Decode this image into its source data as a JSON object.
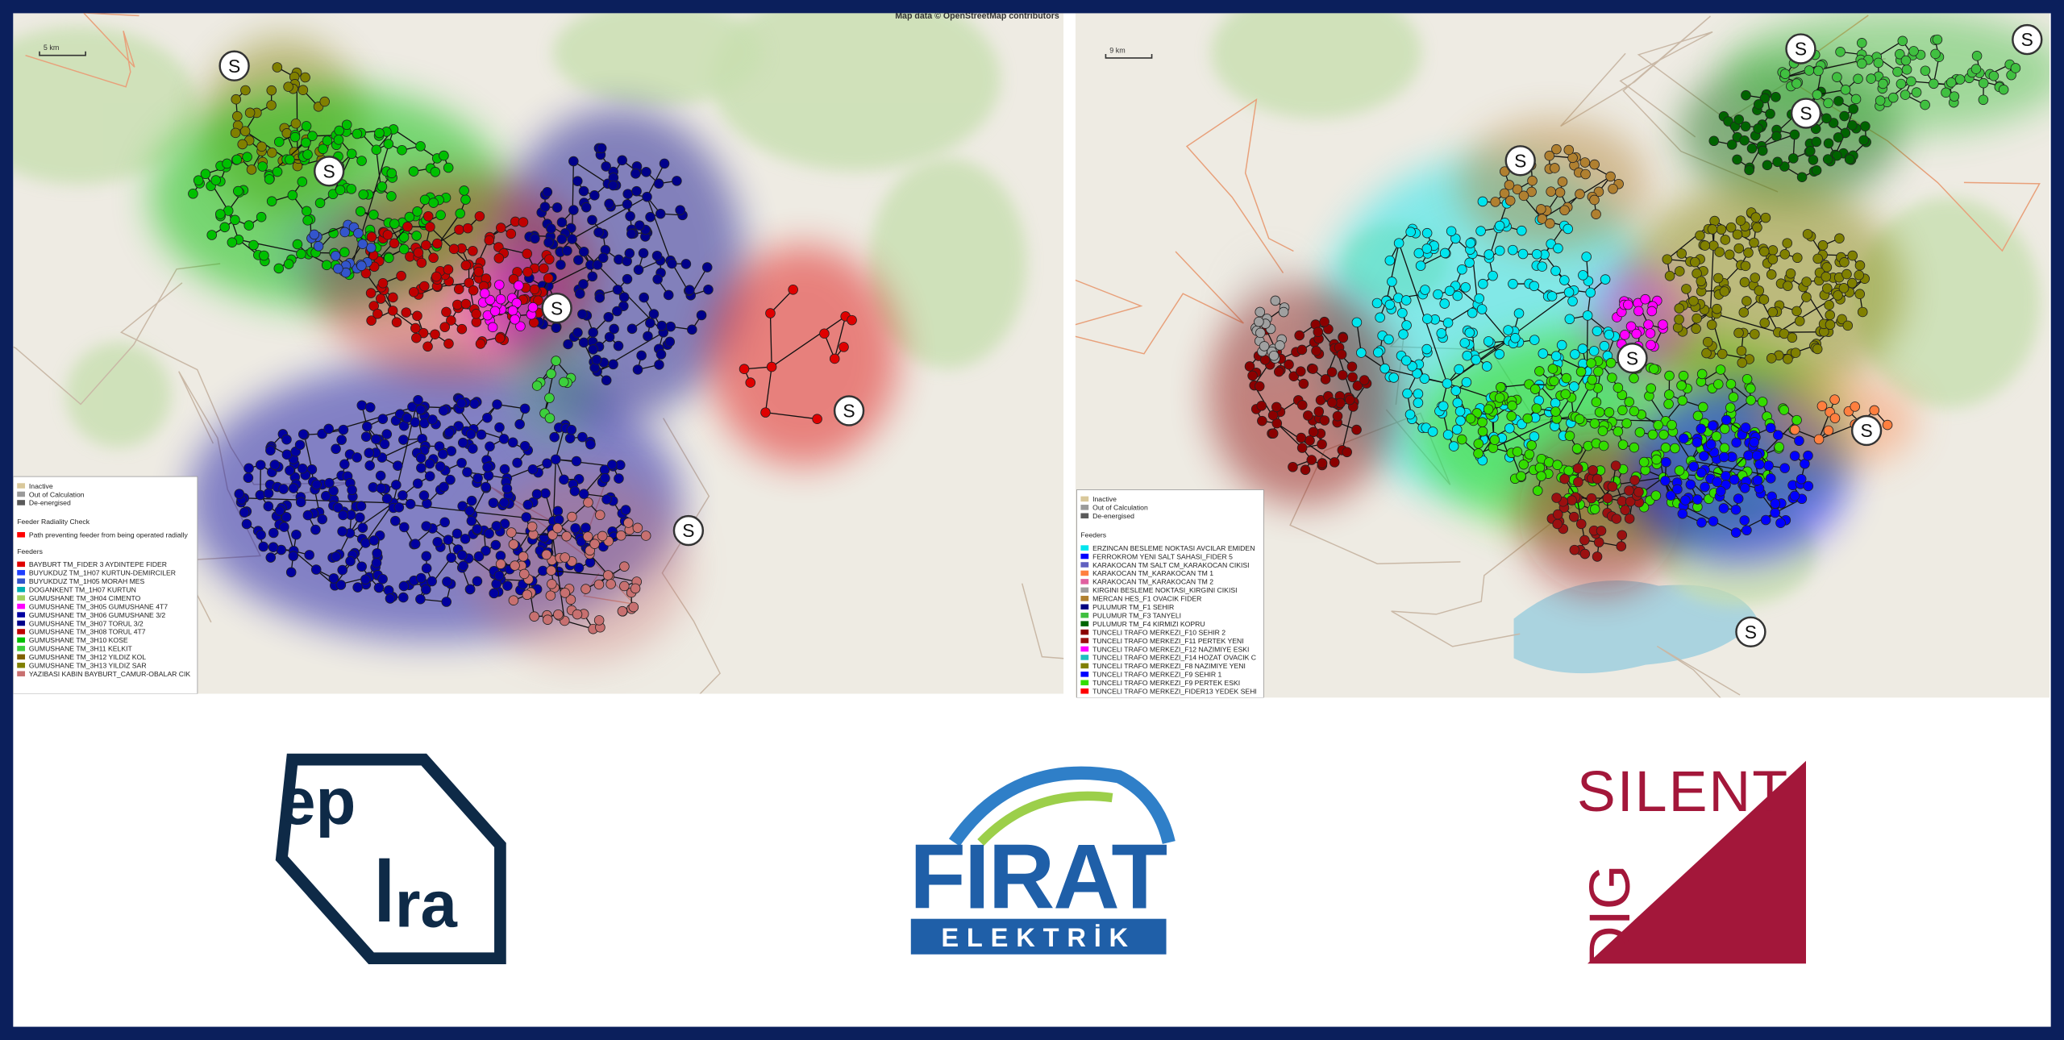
{
  "maps": [
    {
      "attribution": "Map data © OpenStreetMap contributors",
      "scale": "5 km",
      "stations": [
        "S",
        "S",
        "S",
        "S",
        "S"
      ],
      "legend": {
        "states": [
          {
            "label": "Inactive",
            "color": "#d9c89b"
          },
          {
            "label": "Out of Calculation",
            "color": "#9a9a9a"
          },
          {
            "label": "De-energised",
            "color": "#5a5a5a"
          }
        ],
        "check_title": "Feeder Radiality Check",
        "check_items": [
          {
            "label": "Path preventing feeder from being operated radially",
            "color": "#ff0000"
          }
        ],
        "feeders_title": "Feeders",
        "feeders": [
          {
            "label": "BAYBURT TM_FIDER 3 AYDINTEPE FIDER",
            "color": "#e00000"
          },
          {
            "label": "BUYUKDUZ TM_1H07 KURTUN-DEMIRCILER",
            "color": "#1f3fff"
          },
          {
            "label": "BUYUKDUZ TM_1H05 MORAH MES",
            "color": "#3355cc"
          },
          {
            "label": "DOGANKENT TM_1H07 KURTUN",
            "color": "#00b0b0"
          },
          {
            "label": "GUMUSHANE TM_3H04 CIMENTO",
            "color": "#a0d060"
          },
          {
            "label": "GUMUSHANE TM_3H05 GUMUSHANE 4T7",
            "color": "#ff00ff"
          },
          {
            "label": "GUMUSHANE TM_3H06 GUMUSHANE 3/2",
            "color": "#0000a0"
          },
          {
            "label": "GUMUSHANE TM_3H07 TORUL 3/2",
            "color": "#00008b"
          },
          {
            "label": "GUMUSHANE TM_3H08 TORUL 4T7",
            "color": "#c00000"
          },
          {
            "label": "GUMUSHANE TM_3H10 KOSE",
            "color": "#00c000"
          },
          {
            "label": "GUMUSHANE TM_3H11 KELKIT",
            "color": "#3cd03c"
          },
          {
            "label": "GUMUSHANE TM_3H12 YILDIZ KOL",
            "color": "#806000"
          },
          {
            "label": "GUMUSHANE TM_3H13 YILDIZ SAR",
            "color": "#808000"
          },
          {
            "label": "YAZIBASI KABIN BAYBURT_CAMUR-OBALAR CIK",
            "color": "#c87070"
          }
        ]
      }
    },
    {
      "scale": "9 km",
      "stations": [
        "S",
        "S",
        "S",
        "S",
        "S",
        "S",
        "S"
      ],
      "legend": {
        "states": [
          {
            "label": "Inactive",
            "color": "#d9c89b"
          },
          {
            "label": "Out of Calculation",
            "color": "#9a9a9a"
          },
          {
            "label": "De-energised",
            "color": "#5a5a5a"
          }
        ],
        "feeders_title": "Feeders",
        "feeders": [
          {
            "label": "ERZINCAN BESLEME NOKTASI AVCILAR EMIDEN",
            "color": "#00e5ee"
          },
          {
            "label": "FERROKROM YENI SALT SAHASI_FIDER 5",
            "color": "#0000ff"
          },
          {
            "label": "KARAKOCAN TM SALT CM_KARAKOCAN CIKISI",
            "color": "#6060c0"
          },
          {
            "label": "KARAKOCAN TM_KARAKOCAN TM 1",
            "color": "#ff7f3f"
          },
          {
            "label": "KARAKOCAN TM_KARAKOCAN TM 2",
            "color": "#e060a0"
          },
          {
            "label": "KIRGINI BESLEME NOKTASI_KIRGINI CIKISI",
            "color": "#a0a0a0"
          },
          {
            "label": "MERCAN HES_F1 OVACIK FIDER",
            "color": "#b08030"
          },
          {
            "label": "PULUMUR TM_F1 SEHIR",
            "color": "#000080"
          },
          {
            "label": "PULUMUR TM_F3 TANYELI",
            "color": "#40c040"
          },
          {
            "label": "PULUMUR TM_F4 KIRMIZI KOPRU",
            "color": "#006400"
          },
          {
            "label": "TUNCELI TRAFO MERKEZI_F10 SEHIR 2",
            "color": "#8b0000"
          },
          {
            "label": "TUNCELI TRAFO MERKEZI_F11 PERTEK YENI",
            "color": "#9b1010"
          },
          {
            "label": "TUNCELI TRAFO MERKEZI_F12 NAZIMIYE ESKI",
            "color": "#ff00ff"
          },
          {
            "label": "TUNCELI TRAFO MERKEZI_F14 HOZAT OVACIK C",
            "color": "#20c0c0"
          },
          {
            "label": "TUNCELI TRAFO MERKEZI_F8 NAZIMIYE YENI",
            "color": "#808000"
          },
          {
            "label": "TUNCELI TRAFO MERKEZI_F9 SEHIR 1",
            "color": "#0000ff"
          },
          {
            "label": "TUNCELI TRAFO MERKEZI_F9 PERTEK ESKI",
            "color": "#33dd00"
          },
          {
            "label": "TUNCELI TRAFO MERKEZI_FIDER13 YEDEK SEHI",
            "color": "#ff0000"
          }
        ]
      }
    }
  ],
  "logos": {
    "epra": {
      "top": "ep",
      "bottom": "ra"
    },
    "firat": {
      "name": "FIRAT",
      "sub": "ELEKTRİK"
    },
    "digsilent": {
      "top": "SILENT",
      "side": "DIG"
    }
  }
}
